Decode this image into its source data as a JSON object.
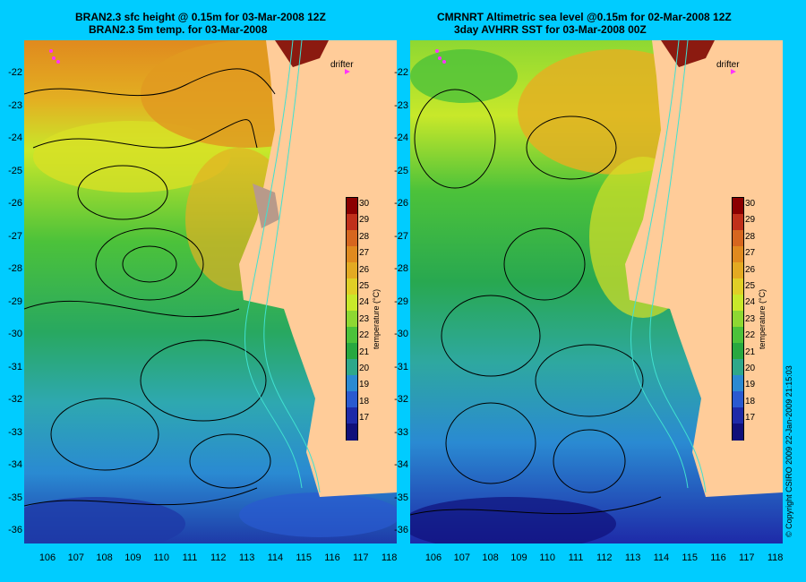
{
  "left_panel": {
    "title_line1": "BRAN2.3 sfc height @ 0.15m for 03-Mar-2008 12Z",
    "title_line2": "BRAN2.3 5m temp. for 03-Mar-2008",
    "drifter_label": "drifter"
  },
  "right_panel": {
    "title_line1": "CMRNRT Altimetric sea level  @0.15m  for 02-Mar-2008 12Z",
    "title_line2": "3day AVHRR SST for 03-Mar-2008 00Z",
    "drifter_label": "drifter"
  },
  "axes": {
    "latitude_ticks": [
      "-22",
      "-23",
      "-24",
      "-25",
      "-26",
      "-27",
      "-28",
      "-29",
      "-30",
      "-31",
      "-32",
      "-33",
      "-34",
      "-35",
      "-36"
    ],
    "longitude_ticks": [
      "106",
      "107",
      "108",
      "109",
      "110",
      "111",
      "112",
      "113",
      "114",
      "115",
      "116",
      "117",
      "118"
    ]
  },
  "colorbar": {
    "title": "temperature (°C)",
    "labels": [
      "30",
      "29",
      "28",
      "27",
      "26",
      "25",
      "24",
      "23",
      "22",
      "21",
      "20",
      "19",
      "18",
      "17"
    ],
    "colors": [
      "#8b0000",
      "#c0301a",
      "#d6661e",
      "#e08a1e",
      "#e3aa22",
      "#e0cf26",
      "#c8e82a",
      "#8ed832",
      "#4cc23a",
      "#28a840",
      "#2ea88a",
      "#2a8ad2",
      "#2a5ad0",
      "#1e2aa8",
      "#10107a"
    ]
  },
  "copyright": "© Copyright CSIRO 2009   22-Jan-2009 21:15:03",
  "colors": {
    "background": "#00ccff",
    "land": "#ffcc99",
    "contour": "#000000",
    "isobath": "#40e0d0",
    "drifter": "#ff33ff"
  }
}
